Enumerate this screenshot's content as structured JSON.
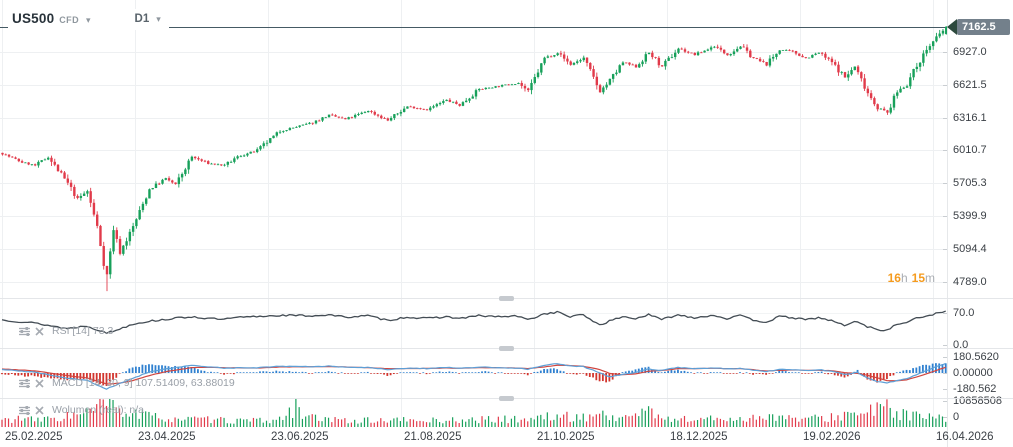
{
  "header": {
    "symbol": "US500",
    "instrument_type": "CFD",
    "timeframe": "D1",
    "dropdown_caret": "▾"
  },
  "countdown": {
    "hours": "16",
    "h_unit": "h",
    "minutes": "15",
    "m_unit": "m"
  },
  "price_axis": {
    "current_price": "7162.5",
    "ticks": [
      "6927.0",
      "6621.5",
      "6316.1",
      "6010.7",
      "5705.3",
      "5399.9",
      "5094.4",
      "4789.0"
    ]
  },
  "panels": {
    "rsi": {
      "label": "RSI [14] 73.3",
      "ticks": [
        "70.0",
        "0.0"
      ],
      "tick_values": [
        70,
        0
      ]
    },
    "macd": {
      "label": "MACD [14, 30, 9] 107.51409, 63.88019",
      "ticks": [
        "180.5620",
        "0.00000",
        "-180.562"
      ],
      "tick_values": [
        180.562,
        0,
        -180.562
      ]
    },
    "volume": {
      "label": "Wolumen (real): n/a",
      "ticks": [
        "10858508",
        "0"
      ],
      "tick_values": [
        10858508,
        0
      ]
    }
  },
  "colors": {
    "up": "#17a05a",
    "down": "#e13a4a",
    "rsi_line": "#434c54",
    "macd_line": "#5d9fd6",
    "signal_line": "#d0453f",
    "hist_up": "#2f80d0",
    "hist_down": "#d2352e",
    "grid": "#eef0f2",
    "grid_soft": "#f2f4f5",
    "price_line": "#455a64",
    "badge_bg": "#73808b",
    "badge_pointer": "#2d4a3e",
    "countdown_accent": "#f59b1e",
    "axis_text": "#3b4046",
    "tick_mark": "#c9cdd1"
  },
  "chart_data": {
    "type": "candlestick",
    "title": "US500 CFD, D1",
    "symbol": "US500",
    "timeframe": "D1",
    "num_candles": 290,
    "current_price": 7162.5,
    "y_ticks": [
      6927.0,
      6621.5,
      6316.1,
      6010.7,
      5705.3,
      5399.9,
      5094.4,
      4789.0
    ],
    "x_labels": [
      "25.02.2025",
      "23.04.2025",
      "23.06.2025",
      "21.08.2025",
      "21.10.2025",
      "18.12.2025",
      "19.02.2026",
      "16.04.2026"
    ],
    "price_range_visible": [
      4700,
      7200
    ],
    "close_anchors": [
      [
        0,
        5980
      ],
      [
        6,
        5900
      ],
      [
        10,
        5870
      ],
      [
        14,
        5950
      ],
      [
        20,
        5700
      ],
      [
        23,
        5560
      ],
      [
        26,
        5630
      ],
      [
        29,
        5300
      ],
      [
        31,
        4960
      ],
      [
        32,
        4850
      ],
      [
        34,
        5280
      ],
      [
        36,
        5060
      ],
      [
        40,
        5300
      ],
      [
        45,
        5650
      ],
      [
        50,
        5750
      ],
      [
        53,
        5690
      ],
      [
        58,
        5950
      ],
      [
        63,
        5890
      ],
      [
        68,
        5870
      ],
      [
        72,
        5950
      ],
      [
        78,
        6010
      ],
      [
        85,
        6190
      ],
      [
        95,
        6270
      ],
      [
        100,
        6340
      ],
      [
        105,
        6300
      ],
      [
        112,
        6380
      ],
      [
        118,
        6290
      ],
      [
        124,
        6420
      ],
      [
        130,
        6390
      ],
      [
        136,
        6480
      ],
      [
        140,
        6430
      ],
      [
        146,
        6580
      ],
      [
        152,
        6610
      ],
      [
        158,
        6640
      ],
      [
        161,
        6560
      ],
      [
        166,
        6870
      ],
      [
        170,
        6920
      ],
      [
        174,
        6810
      ],
      [
        178,
        6870
      ],
      [
        183,
        6560
      ],
      [
        186,
        6660
      ],
      [
        190,
        6830
      ],
      [
        194,
        6790
      ],
      [
        198,
        6920
      ],
      [
        202,
        6790
      ],
      [
        207,
        6960
      ],
      [
        212,
        6900
      ],
      [
        218,
        6980
      ],
      [
        222,
        6900
      ],
      [
        226,
        6980
      ],
      [
        230,
        6870
      ],
      [
        234,
        6810
      ],
      [
        238,
        6950
      ],
      [
        242,
        6930
      ],
      [
        246,
        6870
      ],
      [
        250,
        6920
      ],
      [
        254,
        6830
      ],
      [
        258,
        6690
      ],
      [
        261,
        6790
      ],
      [
        265,
        6550
      ],
      [
        268,
        6410
      ],
      [
        271,
        6360
      ],
      [
        274,
        6560
      ],
      [
        277,
        6630
      ],
      [
        280,
        6800
      ],
      [
        283,
        6950
      ],
      [
        287,
        7090
      ],
      [
        289,
        7162.5
      ]
    ],
    "spike_low": {
      "index": 32,
      "price": 4700
    },
    "indicators": {
      "rsi": {
        "period": 14,
        "last": 73.3,
        "scale": [
          0,
          100
        ],
        "labeled_ticks": [
          70,
          0
        ],
        "anchors": [
          [
            0,
            55
          ],
          [
            10,
            48
          ],
          [
            20,
            36
          ],
          [
            26,
            42
          ],
          [
            32,
            26
          ],
          [
            36,
            35
          ],
          [
            40,
            46
          ],
          [
            45,
            52
          ],
          [
            50,
            56
          ],
          [
            58,
            62
          ],
          [
            63,
            58
          ],
          [
            68,
            56
          ],
          [
            72,
            60
          ],
          [
            85,
            65
          ],
          [
            95,
            64
          ],
          [
            100,
            66
          ],
          [
            105,
            61
          ],
          [
            112,
            64
          ],
          [
            118,
            54
          ],
          [
            124,
            61
          ],
          [
            130,
            58
          ],
          [
            136,
            62
          ],
          [
            140,
            58
          ],
          [
            146,
            64
          ],
          [
            152,
            62
          ],
          [
            158,
            63
          ],
          [
            161,
            55
          ],
          [
            166,
            68
          ],
          [
            170,
            72
          ],
          [
            174,
            62
          ],
          [
            178,
            66
          ],
          [
            183,
            44
          ],
          [
            186,
            52
          ],
          [
            190,
            62
          ],
          [
            194,
            58
          ],
          [
            198,
            66
          ],
          [
            202,
            56
          ],
          [
            207,
            66
          ],
          [
            212,
            60
          ],
          [
            218,
            65
          ],
          [
            222,
            58
          ],
          [
            226,
            64
          ],
          [
            230,
            55
          ],
          [
            234,
            50
          ],
          [
            238,
            62
          ],
          [
            242,
            60
          ],
          [
            246,
            55
          ],
          [
            250,
            60
          ],
          [
            254,
            53
          ],
          [
            258,
            43
          ],
          [
            262,
            52
          ],
          [
            265,
            40
          ],
          [
            268,
            34
          ],
          [
            271,
            32
          ],
          [
            274,
            45
          ],
          [
            277,
            50
          ],
          [
            280,
            58
          ],
          [
            283,
            64
          ],
          [
            287,
            70
          ],
          [
            289,
            73.3
          ]
        ]
      },
      "macd": {
        "params": [
          14,
          30,
          9
        ],
        "last_macd": 107.51409,
        "last_signal": 63.88019,
        "scale": [
          -180.562,
          180.562
        ],
        "macd_anchors": [
          [
            0,
            40
          ],
          [
            10,
            10
          ],
          [
            20,
            -60
          ],
          [
            26,
            -80
          ],
          [
            30,
            -150
          ],
          [
            32,
            -180
          ],
          [
            36,
            -120
          ],
          [
            40,
            -60
          ],
          [
            45,
            10
          ],
          [
            50,
            45
          ],
          [
            58,
            85
          ],
          [
            63,
            70
          ],
          [
            68,
            55
          ],
          [
            78,
            60
          ],
          [
            85,
            75
          ],
          [
            95,
            72
          ],
          [
            100,
            78
          ],
          [
            105,
            65
          ],
          [
            112,
            62
          ],
          [
            118,
            40
          ],
          [
            124,
            55
          ],
          [
            130,
            50
          ],
          [
            136,
            62
          ],
          [
            140,
            52
          ],
          [
            146,
            68
          ],
          [
            152,
            60
          ],
          [
            158,
            55
          ],
          [
            161,
            42
          ],
          [
            166,
            88
          ],
          [
            170,
            105
          ],
          [
            174,
            80
          ],
          [
            178,
            72
          ],
          [
            183,
            5
          ],
          [
            186,
            -45
          ],
          [
            190,
            -15
          ],
          [
            194,
            5
          ],
          [
            198,
            45
          ],
          [
            202,
            30
          ],
          [
            207,
            62
          ],
          [
            212,
            50
          ],
          [
            218,
            58
          ],
          [
            222,
            46
          ],
          [
            226,
            52
          ],
          [
            230,
            30
          ],
          [
            234,
            15
          ],
          [
            238,
            42
          ],
          [
            242,
            38
          ],
          [
            246,
            28
          ],
          [
            250,
            36
          ],
          [
            254,
            22
          ],
          [
            258,
            -15
          ],
          [
            262,
            5
          ],
          [
            265,
            -55
          ],
          [
            268,
            -95
          ],
          [
            271,
            -115
          ],
          [
            274,
            -85
          ],
          [
            277,
            -65
          ],
          [
            280,
            -20
          ],
          [
            283,
            25
          ],
          [
            287,
            85
          ],
          [
            289,
            107.51409
          ]
        ],
        "signal_anchors": [
          [
            0,
            45
          ],
          [
            10,
            25
          ],
          [
            20,
            -30
          ],
          [
            26,
            -55
          ],
          [
            30,
            -100
          ],
          [
            32,
            -125
          ],
          [
            36,
            -115
          ],
          [
            40,
            -85
          ],
          [
            45,
            -30
          ],
          [
            50,
            15
          ],
          [
            58,
            60
          ],
          [
            63,
            65
          ],
          [
            68,
            60
          ],
          [
            78,
            55
          ],
          [
            85,
            68
          ],
          [
            95,
            70
          ],
          [
            100,
            72
          ],
          [
            105,
            68
          ],
          [
            112,
            60
          ],
          [
            118,
            50
          ],
          [
            124,
            50
          ],
          [
            130,
            52
          ],
          [
            136,
            56
          ],
          [
            140,
            54
          ],
          [
            146,
            60
          ],
          [
            152,
            60
          ],
          [
            158,
            56
          ],
          [
            161,
            50
          ],
          [
            166,
            68
          ],
          [
            170,
            88
          ],
          [
            174,
            85
          ],
          [
            178,
            76
          ],
          [
            183,
            40
          ],
          [
            186,
            -5
          ],
          [
            190,
            -20
          ],
          [
            194,
            -10
          ],
          [
            198,
            20
          ],
          [
            202,
            28
          ],
          [
            207,
            48
          ],
          [
            212,
            50
          ],
          [
            218,
            54
          ],
          [
            222,
            48
          ],
          [
            226,
            50
          ],
          [
            230,
            38
          ],
          [
            234,
            22
          ],
          [
            238,
            30
          ],
          [
            242,
            34
          ],
          [
            246,
            30
          ],
          [
            250,
            32
          ],
          [
            254,
            26
          ],
          [
            258,
            5
          ],
          [
            262,
            -5
          ],
          [
            265,
            -25
          ],
          [
            268,
            -55
          ],
          [
            271,
            -85
          ],
          [
            274,
            -88
          ],
          [
            277,
            -78
          ],
          [
            280,
            -45
          ],
          [
            283,
            -10
          ],
          [
            287,
            40
          ],
          [
            289,
            63.88019
          ]
        ]
      },
      "volume": {
        "max": 10858508,
        "labeled_ticks": [
          10858508,
          0
        ],
        "spike_index": 90,
        "anchors_millions": [
          [
            0,
            2.6
          ],
          [
            5,
            3.2
          ],
          [
            10,
            2.6
          ],
          [
            15,
            3.0
          ],
          [
            20,
            4.2
          ],
          [
            25,
            4.6
          ],
          [
            28,
            6.5
          ],
          [
            30,
            8.0
          ],
          [
            32,
            9.2
          ],
          [
            34,
            7.5
          ],
          [
            38,
            5.5
          ],
          [
            45,
            4.0
          ],
          [
            52,
            3.2
          ],
          [
            60,
            2.8
          ],
          [
            70,
            2.4
          ],
          [
            80,
            2.3
          ],
          [
            86,
            3.0
          ],
          [
            89,
            6.5
          ],
          [
            90,
            10.4
          ],
          [
            91,
            7.5
          ],
          [
            93,
            3.6
          ],
          [
            100,
            2.6
          ],
          [
            110,
            2.4
          ],
          [
            120,
            2.6
          ],
          [
            130,
            2.4
          ],
          [
            140,
            2.6
          ],
          [
            150,
            2.8
          ],
          [
            160,
            3.0
          ],
          [
            166,
            3.6
          ],
          [
            170,
            4.2
          ],
          [
            176,
            3.4
          ],
          [
            183,
            5.0
          ],
          [
            188,
            3.4
          ],
          [
            194,
            4.0
          ],
          [
            197,
            8.8
          ],
          [
            198,
            6.5
          ],
          [
            200,
            3.6
          ],
          [
            207,
            3.0
          ],
          [
            214,
            2.8
          ],
          [
            220,
            3.2
          ],
          [
            226,
            3.0
          ],
          [
            230,
            3.4
          ],
          [
            234,
            4.6
          ],
          [
            240,
            3.2
          ],
          [
            246,
            3.0
          ],
          [
            250,
            3.2
          ],
          [
            254,
            3.6
          ],
          [
            258,
            5.0
          ],
          [
            262,
            4.2
          ],
          [
            265,
            5.6
          ],
          [
            268,
            6.6
          ],
          [
            271,
            7.2
          ],
          [
            274,
            5.4
          ],
          [
            277,
            4.6
          ],
          [
            280,
            4.0
          ],
          [
            283,
            3.6
          ],
          [
            287,
            3.2
          ],
          [
            289,
            2.4
          ]
        ]
      }
    }
  }
}
